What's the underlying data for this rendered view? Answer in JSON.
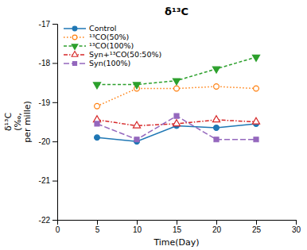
{
  "chart_data": {
    "type": "line",
    "title": "δ¹³C",
    "x_label": "Time(Day)",
    "y_label": "δ¹³C\n(‰,\nper mille)",
    "x": [
      5,
      10,
      15,
      20,
      25
    ],
    "series": [
      {
        "name": "Control",
        "values": [
          -19.9,
          -20.0,
          -19.6,
          -19.65,
          -19.55
        ],
        "marker": "circle",
        "line_style": "solid"
      },
      {
        "name": "¹³CO(50%)",
        "values": [
          -19.1,
          -18.65,
          -18.65,
          -18.6,
          -18.65
        ],
        "marker": "open-circle",
        "line_style": "dotted"
      },
      {
        "name": "¹³CO(100%)",
        "values": [
          -18.55,
          -18.55,
          -18.45,
          -18.15,
          -17.85
        ],
        "marker": "triangle-down",
        "line_style": "dashed"
      },
      {
        "name": "Syn+¹³CO(50:50%)",
        "values": [
          -19.45,
          -19.6,
          -19.55,
          -19.45,
          -19.5
        ],
        "marker": "open-triangle-up",
        "line_style": "dashdot"
      },
      {
        "name": "Syn(100%)",
        "values": [
          -19.55,
          -19.95,
          -19.35,
          -19.95,
          -19.95
        ],
        "marker": "square",
        "line_style": "long-dashed"
      }
    ],
    "xlim": [
      0,
      30
    ],
    "ylim": [
      -22,
      -17
    ],
    "xticks": [
      0,
      5,
      10,
      15,
      20,
      25,
      30
    ],
    "yticks": [
      -22,
      -21,
      -20,
      -19,
      -18,
      -17
    ],
    "grid": false,
    "legend": "upper-left"
  }
}
